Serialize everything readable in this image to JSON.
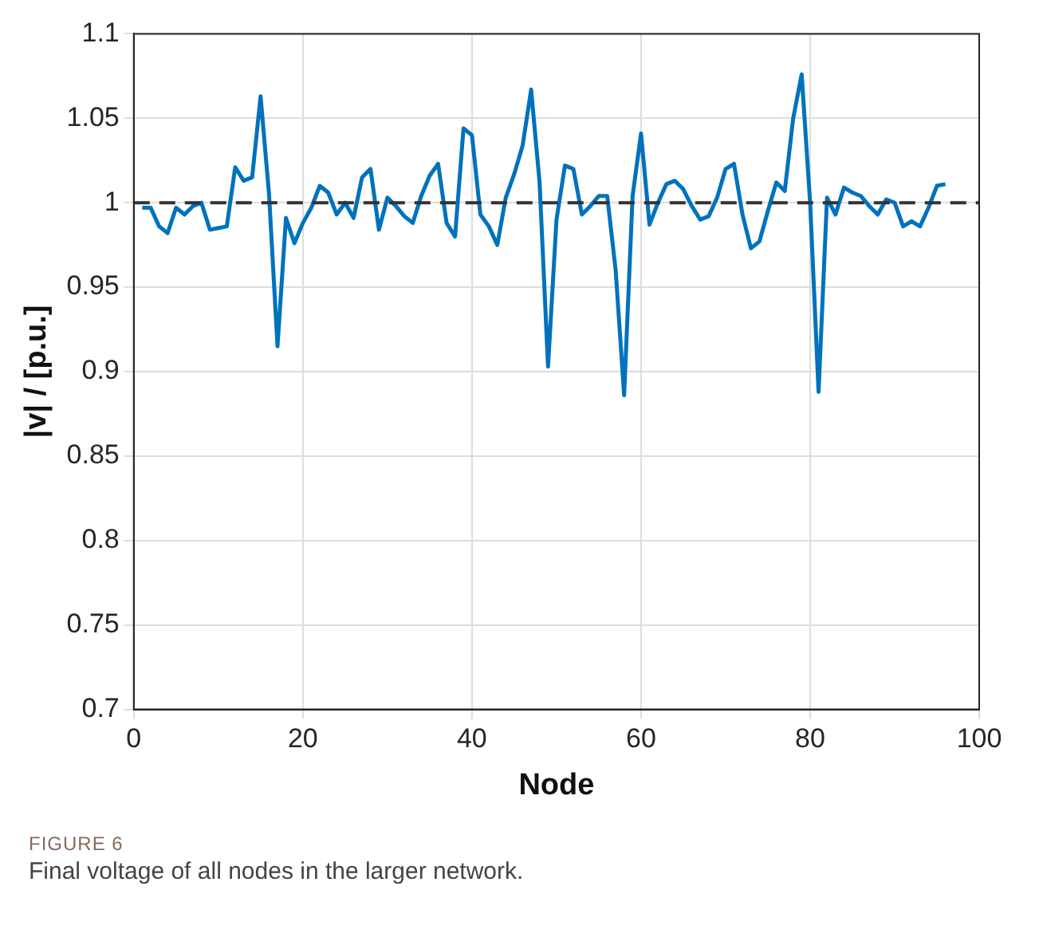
{
  "chart_data": {
    "type": "line",
    "xlabel": "Node",
    "ylabel": "|v| / [p.u.]",
    "x": [
      1,
      2,
      3,
      4,
      5,
      6,
      7,
      8,
      9,
      10,
      11,
      12,
      13,
      14,
      15,
      16,
      17,
      18,
      19,
      20,
      21,
      22,
      23,
      24,
      25,
      26,
      27,
      28,
      29,
      30,
      31,
      32,
      33,
      34,
      35,
      36,
      37,
      38,
      39,
      40,
      41,
      42,
      43,
      44,
      45,
      46,
      47,
      48,
      49,
      50,
      51,
      52,
      53,
      54,
      55,
      56,
      57,
      58,
      59,
      60,
      61,
      62,
      63,
      64,
      65,
      66,
      67,
      68,
      69,
      70,
      71,
      72,
      73,
      74,
      75,
      76,
      77,
      78,
      79,
      80,
      81,
      82,
      83,
      84,
      85,
      86,
      87,
      88,
      89,
      90,
      91,
      92,
      93,
      94,
      95,
      96
    ],
    "series": [
      {
        "color": "#0072bd",
        "values": [
          0.997,
          0.997,
          0.986,
          0.982,
          0.997,
          0.993,
          0.998,
          1.0,
          0.984,
          0.985,
          0.986,
          1.021,
          1.013,
          1.015,
          1.063,
          1.005,
          0.915,
          0.991,
          0.976,
          0.988,
          0.997,
          1.01,
          1.006,
          0.993,
          1.0,
          0.991,
          1.015,
          1.02,
          0.984,
          1.003,
          0.998,
          0.992,
          0.988,
          1.004,
          1.016,
          1.023,
          0.988,
          0.98,
          1.044,
          1.04,
          0.993,
          0.986,
          0.975,
          1.003,
          1.017,
          1.034,
          1.067,
          1.012,
          0.903,
          0.99,
          1.022,
          1.02,
          0.993,
          0.998,
          1.004,
          1.004,
          0.96,
          0.886,
          1.004,
          1.041,
          0.987,
          1.0,
          1.011,
          1.013,
          1.008,
          0.998,
          0.99,
          0.992,
          1.003,
          1.02,
          1.023,
          0.993,
          0.973,
          0.977,
          0.995,
          1.012,
          1.007,
          1.05,
          1.076,
          1.0,
          0.888,
          1.003,
          0.993,
          1.009,
          1.006,
          1.004,
          0.998,
          0.993,
          1.002,
          1.0,
          0.986,
          0.989,
          0.986,
          0.997,
          1.01,
          1.011
        ]
      }
    ],
    "xlim": [
      0,
      100
    ],
    "xticks": [
      0,
      20,
      40,
      60,
      80,
      100
    ],
    "ylim": [
      0.7,
      1.1
    ],
    "yticks": [
      0.7,
      0.75,
      0.8,
      0.85,
      0.9,
      0.95,
      1,
      1.05,
      1.1
    ],
    "grid": true,
    "legend": false,
    "marker": "none",
    "line_style": "solid",
    "ref_lines": [
      {
        "axis": "y",
        "value": 1,
        "color": "#333333",
        "line_style": "dashed"
      }
    ],
    "annotations": [
      "FIGURE 6",
      "Final voltage of all nodes in the larger network."
    ]
  }
}
